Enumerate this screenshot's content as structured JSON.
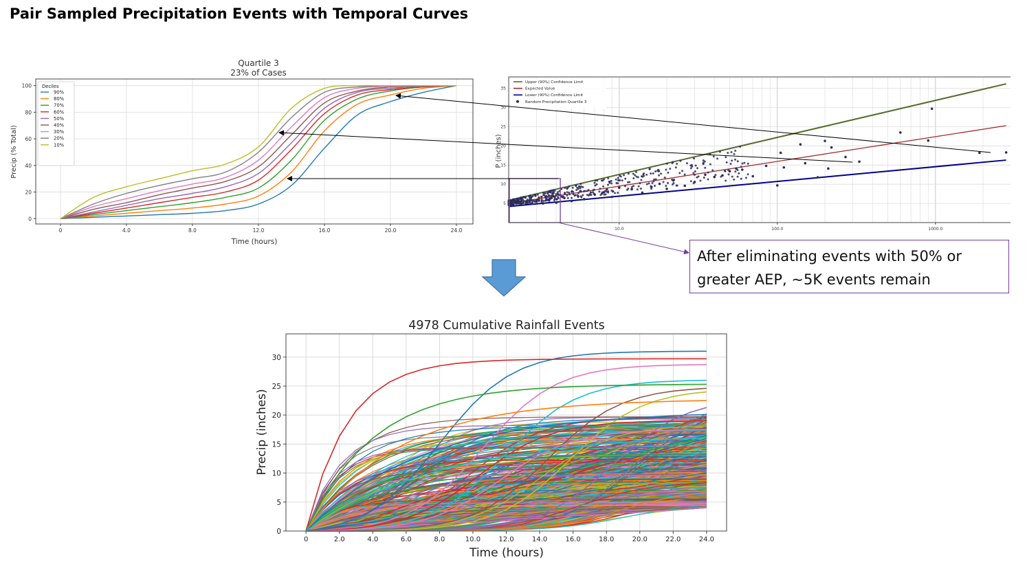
{
  "slide": {
    "title": "Pair Sampled Precipitation Events with Temporal Curves",
    "callout": "After eliminating events with 50% or greater AEP, ~5K events remain"
  },
  "colors": {
    "tab10": [
      "#1f77b4",
      "#ff7f0e",
      "#2ca02c",
      "#d62728",
      "#9467bd",
      "#8c564b",
      "#e377c2",
      "#7f7f7f",
      "#bcbd22",
      "#17becf"
    ],
    "upper": "#556b2f",
    "expected": "#a52a2a",
    "lower": "#00008b",
    "points": "#2b2b5a",
    "callout_border": "#7a3ca0",
    "arrow_fill": "#5b9bd5"
  },
  "chart_data": [
    {
      "type": "line",
      "title": "Quartile 3",
      "subtitle": "23% of Cases",
      "xlabel": "Time (hours)",
      "ylabel": "Precip (% Total)",
      "xlim": [
        -1.5,
        25
      ],
      "ylim": [
        -4,
        105
      ],
      "xticks": [
        0,
        4,
        8,
        12,
        16,
        20,
        24
      ],
      "xtick_labels": [
        "0",
        "4.0",
        "8.0",
        "12.0",
        "16.0",
        "20.0",
        "24.0"
      ],
      "yticks": [
        0,
        20,
        40,
        60,
        80,
        100
      ],
      "grid": true,
      "legend": {
        "title": "Deciles",
        "placement": "top-left"
      },
      "x": [
        0,
        2,
        4,
        6,
        8,
        10,
        12,
        14,
        16,
        18,
        20,
        22,
        24
      ],
      "series": [
        {
          "name": "90%",
          "values": [
            0,
            1,
            2,
            3,
            4,
            6,
            11,
            25,
            53,
            78,
            88,
            95,
            100
          ]
        },
        {
          "name": "80%",
          "values": [
            0,
            2,
            4,
            6,
            8,
            11,
            17,
            35,
            66,
            86,
            93,
            98,
            100
          ]
        },
        {
          "name": "70%",
          "values": [
            0,
            3,
            6,
            9,
            12,
            16,
            23,
            44,
            74,
            90,
            96,
            99,
            100
          ]
        },
        {
          "name": "60%",
          "values": [
            0,
            4,
            8,
            12,
            16,
            20,
            29,
            52,
            79,
            93,
            97,
            99,
            100
          ]
        },
        {
          "name": "50%",
          "values": [
            0,
            5,
            10,
            15,
            19,
            24,
            34,
            57,
            83,
            95,
            98,
            99.5,
            100
          ]
        },
        {
          "name": "40%",
          "values": [
            0,
            7,
            12,
            18,
            23,
            28,
            39,
            63,
            87,
            96,
            99,
            99.8,
            100
          ]
        },
        {
          "name": "30%",
          "values": [
            0,
            9,
            15,
            21,
            26,
            31,
            44,
            69,
            91,
            98,
            99.5,
            100,
            100
          ]
        },
        {
          "name": "20%",
          "values": [
            0,
            11,
            19,
            25,
            30,
            35,
            50,
            76,
            95,
            99,
            100,
            100,
            100
          ]
        },
        {
          "name": "10%",
          "values": [
            0,
            16,
            24,
            30,
            36,
            41,
            54,
            83,
            98,
            100,
            100,
            100,
            100
          ]
        }
      ]
    },
    {
      "type": "scatter",
      "xlabel": "",
      "ylabel": "P (inches)",
      "xscale": "log",
      "xlim": [
        2,
        3200
      ],
      "ylim": [
        0,
        38
      ],
      "xticks": [
        10,
        100,
        1000
      ],
      "xtick_labels": [
        "10.0",
        "100.0",
        "1000.0"
      ],
      "yticks": [
        0,
        5,
        10,
        15,
        20,
        25,
        30,
        35
      ],
      "grid": true,
      "legend": {
        "placement": "top-left"
      },
      "series": [
        {
          "name": "Upper (90%) Confidence Limit",
          "kind": "line",
          "x": [
            2,
            2800
          ],
          "y": [
            5.8,
            36.2
          ]
        },
        {
          "name": "Expected Value",
          "kind": "line",
          "x": [
            2,
            2800
          ],
          "y": [
            5.0,
            25.3
          ]
        },
        {
          "name": "Lower (90%) Confidence Limit",
          "kind": "line",
          "x": [
            2,
            2800
          ],
          "y": [
            4.2,
            16.3
          ]
        },
        {
          "name": "Random Precipitation Quartile 3",
          "kind": "points",
          "x": [
            2800,
            1900,
            950,
            900,
            600,
            330,
            270,
            220,
            210,
            200,
            180,
            150,
            140,
            110,
            105,
            100,
            85,
            70,
            60,
            55,
            50,
            45,
            40,
            35,
            30,
            26,
            22,
            20,
            18,
            16,
            14,
            12,
            10,
            9,
            8,
            7,
            6,
            5.5,
            5,
            4.5,
            4,
            3.6,
            3.3,
            3,
            2.8,
            2.6,
            2.4,
            2.2
          ],
          "y": [
            18.3,
            18.2,
            29.7,
            21.4,
            23.5,
            15.9,
            17.1,
            19.6,
            14.1,
            21.3,
            11.8,
            15.5,
            20.4,
            14.4,
            18.2,
            9.7,
            14.8,
            12.1,
            13.8,
            14.1,
            13.4,
            12.3,
            11.9,
            12.5,
            10.6,
            9.6,
            11.0,
            8.8,
            10.1,
            9.3,
            7.8,
            8.7,
            9.1,
            6.7,
            7.9,
            7.3,
            6.1,
            6.8,
            5.6,
            6.4,
            5.2,
            6.0,
            5.0,
            5.7,
            4.9,
            5.3,
            4.6,
            5.5
          ]
        }
      ],
      "highlight": {
        "x": [
          2,
          4.2
        ],
        "y": [
          0,
          11.5
        ]
      }
    },
    {
      "type": "line",
      "title": "4978  Cumulative Rainfall Events",
      "xlabel": "Time (hours)",
      "ylabel": "Precip (inches)",
      "xlim": [
        -1.2,
        25.2
      ],
      "ylim": [
        0,
        34
      ],
      "xticks": [
        0,
        2,
        4,
        6,
        8,
        10,
        12,
        14,
        16,
        18,
        20,
        22,
        24
      ],
      "xtick_labels": [
        "0",
        "2.0",
        "4.0",
        "6.0",
        "8.0",
        "10.0",
        "12.0",
        "14.0",
        "16.0",
        "18.0",
        "20.0",
        "22.0",
        "24.0"
      ],
      "yticks": [
        0,
        5,
        10,
        15,
        20,
        25,
        30
      ],
      "grid": true,
      "events_total": 4978,
      "totals_range": [
        4,
        31
      ],
      "highlighted_totals": [
        31,
        29.7,
        28.7,
        26,
        25.3,
        24.6,
        24,
        22.5,
        21.3,
        20.2,
        20.1,
        19,
        17.5,
        16.1
      ]
    }
  ]
}
